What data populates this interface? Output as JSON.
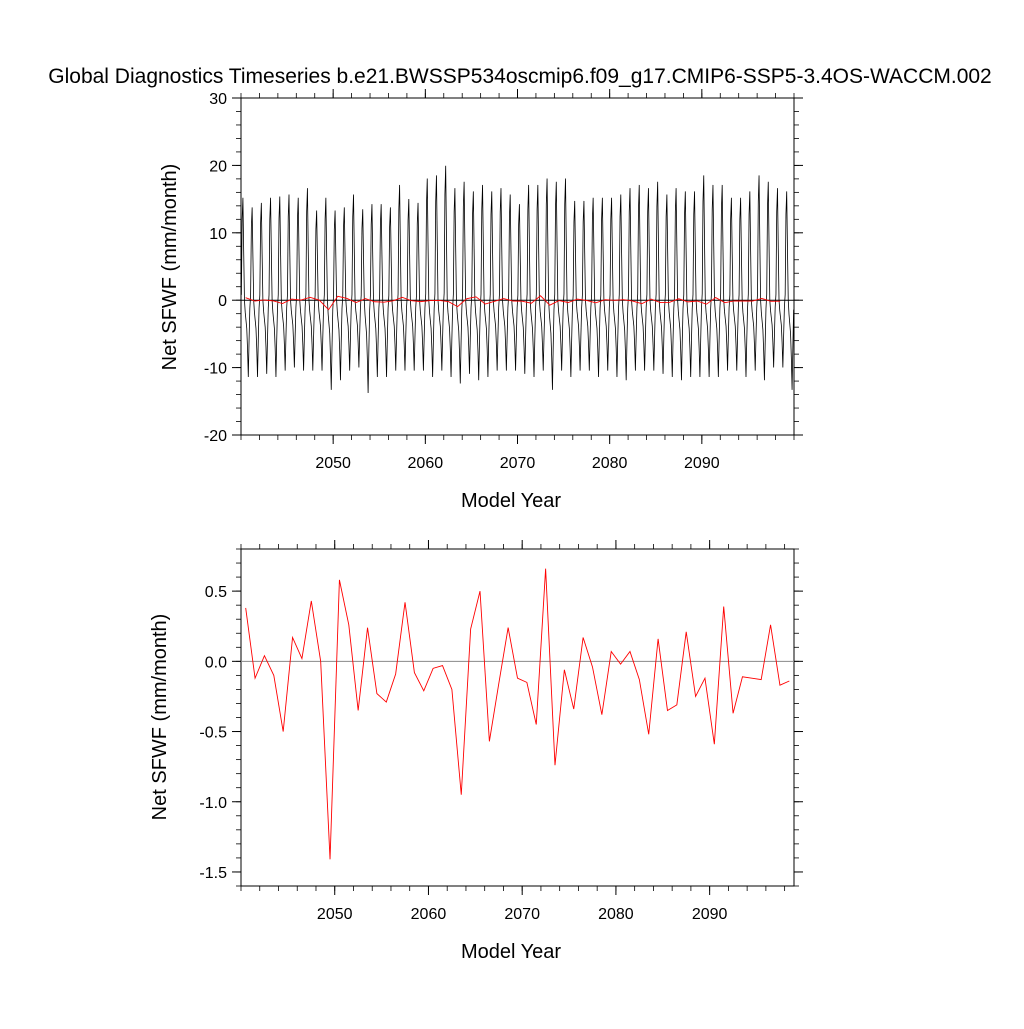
{
  "title": "Global Diagnostics Timeseries b.e21.BWSSP534oscmip6.f09_g17.CMIP6-SSP5-3.4OS-WACCM.002",
  "colors": {
    "monthly": "#000000",
    "annual": "#ff0000",
    "zero_line": "#888888",
    "axes": "#000000"
  },
  "chart_data": [
    {
      "type": "line",
      "title": "",
      "xlabel": "Model Year",
      "ylabel": "Net SFWF (mm/month)",
      "xlim": [
        2040,
        2100
      ],
      "ylim": [
        -20,
        30
      ],
      "x_ticks": [
        2050,
        2060,
        2070,
        2080,
        2090
      ],
      "x_tick_labels": [
        "2050",
        "2060",
        "2070",
        "2080",
        "2090"
      ],
      "y_ticks": [
        -20,
        -10,
        0,
        10,
        20,
        30
      ],
      "y_tick_labels": [
        "-20",
        "-10",
        "0",
        "10",
        "20",
        "30"
      ],
      "reference_line": 0,
      "series": [
        {
          "color": "#000000",
          "sampling": "monthly",
          "x_start": 2040.0417,
          "x_step": 0.0833333,
          "annual_peaks": [
            16.0,
            14.5,
            15.2,
            16.0,
            16.2,
            16.5,
            16.0,
            17.5,
            14.0,
            16.0,
            14.0,
            14.5,
            16.5,
            14.2,
            15.0,
            15.0,
            14.5,
            18.0,
            15.8,
            15.2,
            19.0,
            19.5,
            21.0,
            17.5,
            18.5,
            17.0,
            18.0,
            17.0,
            17.5,
            16.5,
            15.0,
            18.0,
            18.0,
            19.0,
            18.5,
            19.0,
            15.5,
            15.5,
            16.0,
            16.0,
            16.0,
            16.5,
            17.5,
            18.0,
            17.5,
            18.5,
            16.5,
            17.5,
            17.0,
            17.0,
            19.5,
            18.0,
            18.0,
            16.0,
            16.0,
            17.0,
            19.5,
            18.5,
            17.5,
            17.0
          ],
          "annual_troughs": [
            -12.0,
            -12.0,
            -11.5,
            -12.0,
            -11.0,
            -10.5,
            -11.0,
            -11.0,
            -11.0,
            -14.0,
            -12.5,
            -11.0,
            -10.5,
            -14.5,
            -12.0,
            -12.0,
            -11.0,
            -11.0,
            -11.0,
            -11.0,
            -12.0,
            -11.0,
            -12.0,
            -13.0,
            -11.5,
            -12.5,
            -12.0,
            -11.0,
            -11.0,
            -11.0,
            -11.5,
            -12.0,
            -11.0,
            -14.0,
            -11.0,
            -12.0,
            -11.0,
            -11.0,
            -12.0,
            -11.0,
            -12.0,
            -12.5,
            -11.0,
            -11.0,
            -11.0,
            -11.5,
            -12.0,
            -12.5,
            -12.0,
            -12.0,
            -12.0,
            -12.0,
            -11.0,
            -11.0,
            -12.0,
            -11.0,
            -12.5,
            -10.5,
            -10.5,
            -14.0
          ]
        },
        {
          "color": "#ff0000",
          "sampling": "annual",
          "x": [
            2040.5,
            2041.5,
            2042.5,
            2043.5,
            2044.5,
            2045.5,
            2046.5,
            2047.5,
            2048.5,
            2049.5,
            2050.5,
            2051.5,
            2052.5,
            2053.5,
            2054.5,
            2055.5,
            2056.5,
            2057.5,
            2058.5,
            2059.5,
            2060.5,
            2061.5,
            2062.5,
            2063.5,
            2064.5,
            2065.5,
            2066.5,
            2067.5,
            2068.5,
            2069.5,
            2070.5,
            2071.5,
            2072.5,
            2073.5,
            2074.5,
            2075.5,
            2076.5,
            2077.5,
            2078.5,
            2079.5,
            2080.5,
            2081.5,
            2082.5,
            2083.5,
            2084.5,
            2085.5,
            2086.5,
            2087.5,
            2088.5,
            2089.5,
            2090.5,
            2091.5,
            2092.5,
            2093.5,
            2094.5,
            2095.5,
            2096.5,
            2097.5,
            2098.5
          ],
          "values": [
            0.38,
            -0.12,
            0.04,
            -0.1,
            -0.5,
            0.17,
            0.02,
            0.43,
            0.0,
            -1.41,
            0.58,
            0.26,
            -0.35,
            0.24,
            -0.23,
            -0.29,
            -0.09,
            0.42,
            -0.08,
            -0.21,
            -0.05,
            -0.03,
            -0.2,
            -0.95,
            0.23,
            0.5,
            -0.57,
            -0.16,
            0.24,
            -0.12,
            -0.15,
            -0.45,
            0.66,
            -0.74,
            -0.06,
            -0.34,
            0.17,
            -0.04,
            -0.38,
            0.07,
            -0.02,
            0.07,
            -0.13,
            -0.52,
            0.16,
            -0.35,
            -0.31,
            0.21,
            -0.25,
            -0.12,
            -0.59,
            0.39,
            -0.37,
            -0.11,
            -0.12,
            -0.13,
            0.26,
            -0.17,
            -0.14
          ]
        }
      ]
    },
    {
      "type": "line",
      "title": "",
      "xlabel": "Model Year",
      "ylabel": "Net SFWF (mm/month)",
      "xlim": [
        2040,
        2099
      ],
      "ylim": [
        -1.6,
        0.8
      ],
      "x_ticks": [
        2050,
        2060,
        2070,
        2080,
        2090
      ],
      "x_tick_labels": [
        "2050",
        "2060",
        "2070",
        "2080",
        "2090"
      ],
      "y_ticks": [
        -1.5,
        -1.0,
        -0.5,
        0.0,
        0.5
      ],
      "y_tick_labels": [
        "-1.5",
        "-1.0",
        "-0.5",
        "0.0",
        "0.5"
      ],
      "reference_line": 0,
      "series": [
        {
          "color": "#ff0000",
          "sampling": "annual",
          "x": [
            2040.5,
            2041.5,
            2042.5,
            2043.5,
            2044.5,
            2045.5,
            2046.5,
            2047.5,
            2048.5,
            2049.5,
            2050.5,
            2051.5,
            2052.5,
            2053.5,
            2054.5,
            2055.5,
            2056.5,
            2057.5,
            2058.5,
            2059.5,
            2060.5,
            2061.5,
            2062.5,
            2063.5,
            2064.5,
            2065.5,
            2066.5,
            2067.5,
            2068.5,
            2069.5,
            2070.5,
            2071.5,
            2072.5,
            2073.5,
            2074.5,
            2075.5,
            2076.5,
            2077.5,
            2078.5,
            2079.5,
            2080.5,
            2081.5,
            2082.5,
            2083.5,
            2084.5,
            2085.5,
            2086.5,
            2087.5,
            2088.5,
            2089.5,
            2090.5,
            2091.5,
            2092.5,
            2093.5,
            2094.5,
            2095.5,
            2096.5,
            2097.5,
            2098.5
          ],
          "values": [
            0.38,
            -0.12,
            0.04,
            -0.1,
            -0.5,
            0.17,
            0.02,
            0.43,
            0.0,
            -1.41,
            0.58,
            0.26,
            -0.35,
            0.24,
            -0.23,
            -0.29,
            -0.09,
            0.42,
            -0.08,
            -0.21,
            -0.05,
            -0.03,
            -0.2,
            -0.95,
            0.23,
            0.5,
            -0.57,
            -0.16,
            0.24,
            -0.12,
            -0.15,
            -0.45,
            0.66,
            -0.74,
            -0.06,
            -0.34,
            0.17,
            -0.04,
            -0.38,
            0.07,
            -0.02,
            0.07,
            -0.13,
            -0.52,
            0.16,
            -0.35,
            -0.31,
            0.21,
            -0.25,
            -0.12,
            -0.59,
            0.39,
            -0.37,
            -0.11,
            -0.12,
            -0.13,
            0.26,
            -0.17,
            -0.14
          ]
        }
      ]
    }
  ]
}
